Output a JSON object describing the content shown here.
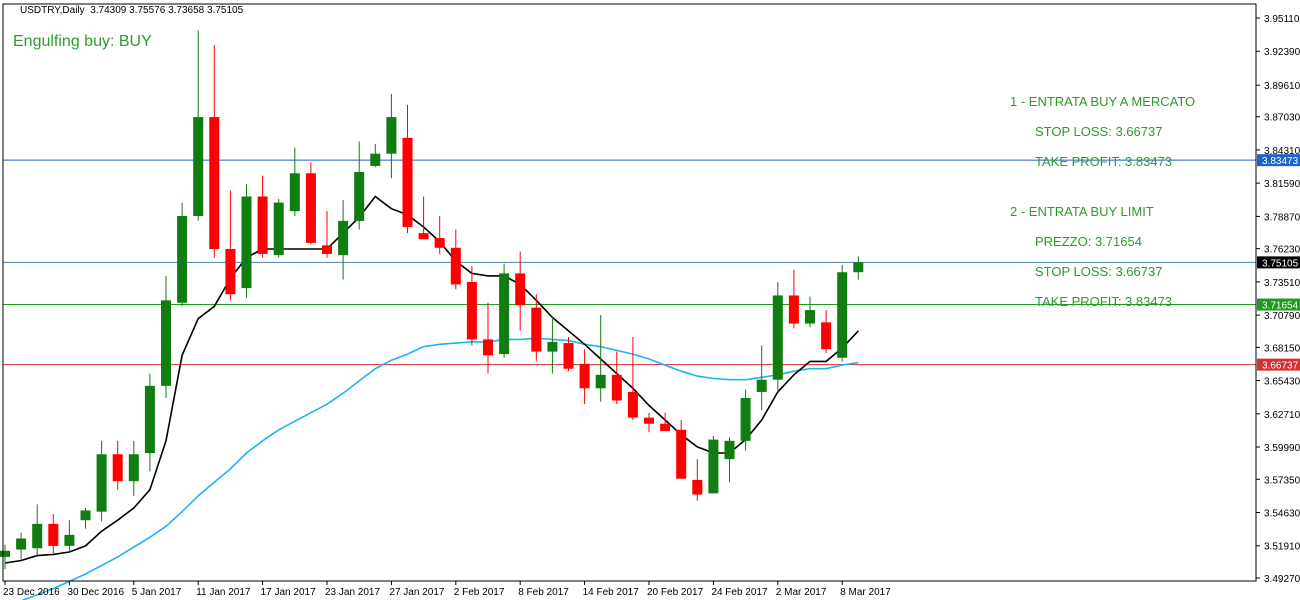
{
  "header": {
    "symbol": "USDTRY,Daily",
    "ohlc": "3.74309 3.75576 3.73658 3.75105"
  },
  "signal": "Engulfing buy: BUY",
  "plan": {
    "line1": "1 - ENTRATA BUY A MERCATO",
    "line2": "STOP LOSS: 3.66737",
    "line3": "TAKE PROFIT: 3.83473",
    "line4": "2 - ENTRATA BUY LIMIT",
    "line5": "PREZZO: 3.71654",
    "line6": "STOP LOSS: 3.66737",
    "line7": "TAKE PROFIT: 3.83473"
  },
  "colors": {
    "bull": "#0f7d0f",
    "bear": "#ff0000",
    "ma_fast": "#000000",
    "ma_slow": "#1eb4ef",
    "take_profit_line": "#1e64c8",
    "entry_line": "#1e9a1e",
    "stop_loss_line": "#d23232",
    "current_price_line": "#4682b4"
  },
  "chart_data": {
    "type": "candlestick",
    "ylim": [
      3.4927,
      3.9511
    ],
    "y_ticks": [
      "3.95110",
      "3.92390",
      "3.89610",
      "3.87030",
      "3.84310",
      "3.81590",
      "3.78870",
      "3.76230",
      "3.73510",
      "3.70790",
      "3.68150",
      "3.65430",
      "3.62710",
      "3.59990",
      "3.57350",
      "3.54630",
      "3.51910",
      "3.49270"
    ],
    "x_tick_labels": [
      {
        "label": "23 Dec 2016",
        "index": 0
      },
      {
        "label": "30 Dec 2016",
        "index": 4
      },
      {
        "label": "5 Jan 2017",
        "index": 8
      },
      {
        "label": "11 Jan 2017",
        "index": 12
      },
      {
        "label": "17 Jan 2017",
        "index": 16
      },
      {
        "label": "23 Jan 2017",
        "index": 20
      },
      {
        "label": "27 Jan 2017",
        "index": 24
      },
      {
        "label": "2 Feb 2017",
        "index": 28
      },
      {
        "label": "8 Feb 2017",
        "index": 32
      },
      {
        "label": "14 Feb 2017",
        "index": 36
      },
      {
        "label": "20 Feb 2017",
        "index": 40
      },
      {
        "label": "24 Feb 2017",
        "index": 44
      },
      {
        "label": "2 Mar 2017",
        "index": 48
      },
      {
        "label": "8 Mar 2017",
        "index": 52
      }
    ],
    "candles": [
      {
        "o": 3.51,
        "h": 3.52,
        "l": 3.5,
        "c": 3.515
      },
      {
        "o": 3.516,
        "h": 3.53,
        "l": 3.508,
        "c": 3.525
      },
      {
        "o": 3.517,
        "h": 3.553,
        "l": 3.51,
        "c": 3.537
      },
      {
        "o": 3.537,
        "h": 3.545,
        "l": 3.513,
        "c": 3.519
      },
      {
        "o": 3.519,
        "h": 3.54,
        "l": 3.514,
        "c": 3.528
      },
      {
        "o": 3.54,
        "h": 3.55,
        "l": 3.533,
        "c": 3.548
      },
      {
        "o": 3.547,
        "h": 3.605,
        "l": 3.539,
        "c": 3.594
      },
      {
        "o": 3.594,
        "h": 3.605,
        "l": 3.565,
        "c": 3.572
      },
      {
        "o": 3.572,
        "h": 3.605,
        "l": 3.56,
        "c": 3.594
      },
      {
        "o": 3.595,
        "h": 3.66,
        "l": 3.58,
        "c": 3.65
      },
      {
        "o": 3.65,
        "h": 3.74,
        "l": 3.64,
        "c": 3.72
      },
      {
        "o": 3.718,
        "h": 3.8,
        "l": 3.715,
        "c": 3.789
      },
      {
        "o": 3.789,
        "h": 3.941,
        "l": 3.785,
        "c": 3.87
      },
      {
        "o": 3.87,
        "h": 3.929,
        "l": 3.755,
        "c": 3.762
      },
      {
        "o": 3.762,
        "h": 3.81,
        "l": 3.72,
        "c": 3.725
      },
      {
        "o": 3.73,
        "h": 3.815,
        "l": 3.722,
        "c": 3.805
      },
      {
        "o": 3.805,
        "h": 3.822,
        "l": 3.755,
        "c": 3.758
      },
      {
        "o": 3.757,
        "h": 3.803,
        "l": 3.755,
        "c": 3.8
      },
      {
        "o": 3.793,
        "h": 3.845,
        "l": 3.789,
        "c": 3.824
      },
      {
        "o": 3.824,
        "h": 3.833,
        "l": 3.766,
        "c": 3.767
      },
      {
        "o": 3.765,
        "h": 3.793,
        "l": 3.755,
        "c": 3.758
      },
      {
        "o": 3.757,
        "h": 3.802,
        "l": 3.737,
        "c": 3.785
      },
      {
        "o": 3.785,
        "h": 3.85,
        "l": 3.778,
        "c": 3.825
      },
      {
        "o": 3.83,
        "h": 3.848,
        "l": 3.829,
        "c": 3.84
      },
      {
        "o": 3.84,
        "h": 3.889,
        "l": 3.82,
        "c": 3.87
      },
      {
        "o": 3.853,
        "h": 3.88,
        "l": 3.775,
        "c": 3.78
      },
      {
        "o": 3.775,
        "h": 3.805,
        "l": 3.772,
        "c": 3.77
      },
      {
        "o": 3.771,
        "h": 3.789,
        "l": 3.758,
        "c": 3.763
      },
      {
        "o": 3.763,
        "h": 3.778,
        "l": 3.729,
        "c": 3.733
      },
      {
        "o": 3.735,
        "h": 3.748,
        "l": 3.683,
        "c": 3.688
      },
      {
        "o": 3.688,
        "h": 3.718,
        "l": 3.66,
        "c": 3.675
      },
      {
        "o": 3.676,
        "h": 3.75,
        "l": 3.673,
        "c": 3.742
      },
      {
        "o": 3.742,
        "h": 3.76,
        "l": 3.695,
        "c": 3.716
      },
      {
        "o": 3.714,
        "h": 3.725,
        "l": 3.67,
        "c": 3.678
      },
      {
        "o": 3.678,
        "h": 3.707,
        "l": 3.66,
        "c": 3.686
      },
      {
        "o": 3.685,
        "h": 3.69,
        "l": 3.662,
        "c": 3.664
      },
      {
        "o": 3.668,
        "h": 3.68,
        "l": 3.635,
        "c": 3.648
      },
      {
        "o": 3.648,
        "h": 3.708,
        "l": 3.637,
        "c": 3.659
      },
      {
        "o": 3.659,
        "h": 3.678,
        "l": 3.635,
        "c": 3.638
      },
      {
        "o": 3.645,
        "h": 3.69,
        "l": 3.622,
        "c": 3.624
      },
      {
        "o": 3.624,
        "h": 3.628,
        "l": 3.612,
        "c": 3.619
      },
      {
        "o": 3.619,
        "h": 3.628,
        "l": 3.613,
        "c": 3.613
      },
      {
        "o": 3.614,
        "h": 3.622,
        "l": 3.574,
        "c": 3.574
      },
      {
        "o": 3.573,
        "h": 3.59,
        "l": 3.556,
        "c": 3.561
      },
      {
        "o": 3.562,
        "h": 3.609,
        "l": 3.562,
        "c": 3.606
      },
      {
        "o": 3.59,
        "h": 3.608,
        "l": 3.571,
        "c": 3.605
      },
      {
        "o": 3.605,
        "h": 3.647,
        "l": 3.597,
        "c": 3.64
      },
      {
        "o": 3.645,
        "h": 3.683,
        "l": 3.63,
        "c": 3.655
      },
      {
        "o": 3.655,
        "h": 3.735,
        "l": 3.645,
        "c": 3.724
      },
      {
        "o": 3.724,
        "h": 3.745,
        "l": 3.697,
        "c": 3.701
      },
      {
        "o": 3.701,
        "h": 3.723,
        "l": 3.698,
        "c": 3.712
      },
      {
        "o": 3.702,
        "h": 3.712,
        "l": 3.677,
        "c": 3.68
      },
      {
        "o": 3.673,
        "h": 3.749,
        "l": 3.67,
        "c": 3.743
      },
      {
        "o": 3.743,
        "h": 3.756,
        "l": 3.737,
        "c": 3.751
      }
    ],
    "ma_fast": [
      3.505,
      3.507,
      3.511,
      3.512,
      3.514,
      3.519,
      3.531,
      3.54,
      3.55,
      3.565,
      3.605,
      3.675,
      3.705,
      3.715,
      3.738,
      3.755,
      3.762,
      3.762,
      3.762,
      3.762,
      3.762,
      3.775,
      3.788,
      3.805,
      3.795,
      3.79,
      3.78,
      3.768,
      3.752,
      3.742,
      3.74,
      3.74,
      3.733,
      3.72,
      3.706,
      3.695,
      3.684,
      3.672,
      3.66,
      3.648,
      3.634,
      3.622,
      3.61,
      3.6,
      3.595,
      3.595,
      3.606,
      3.622,
      3.645,
      3.659,
      3.67,
      3.67,
      3.681,
      3.695
    ],
    "ma_slow": [
      3.47,
      3.474,
      3.479,
      3.484,
      3.49,
      3.496,
      3.503,
      3.51,
      3.518,
      3.526,
      3.535,
      3.547,
      3.56,
      3.571,
      3.582,
      3.595,
      3.605,
      3.614,
      3.621,
      3.628,
      3.635,
      3.644,
      3.654,
      3.664,
      3.671,
      3.676,
      3.682,
      3.684,
      3.685,
      3.686,
      3.686,
      3.688,
      3.688,
      3.689,
      3.688,
      3.687,
      3.684,
      3.682,
      3.679,
      3.676,
      3.672,
      3.667,
      3.662,
      3.658,
      3.656,
      3.655,
      3.655,
      3.657,
      3.659,
      3.662,
      3.664,
      3.664,
      3.667,
      3.669
    ],
    "levels": [
      {
        "name": "take-profit",
        "value": 3.83473,
        "label": "3.83473"
      },
      {
        "name": "current-price",
        "value": 3.75105,
        "label": "3.75105"
      },
      {
        "name": "entry-limit",
        "value": 3.71654,
        "label": "3.71654"
      },
      {
        "name": "stop-loss",
        "value": 3.66737,
        "label": "3.66737"
      }
    ]
  }
}
